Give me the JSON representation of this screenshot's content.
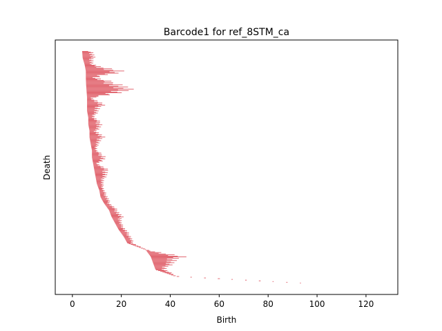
{
  "chart_data": {
    "type": "barcode",
    "title": "Barcode1 for ref_8STM_ca",
    "xlabel": "Birth",
    "ylabel": "Death",
    "xlim": [
      -7,
      133
    ],
    "x_ticks": [
      0,
      20,
      40,
      60,
      80,
      100,
      120
    ],
    "y_ticks": [],
    "bar_color": "#e0606a",
    "bar_count": 320,
    "bars_sampled": [
      [
        4.0,
        8.5
      ],
      [
        4.2,
        9.0
      ],
      [
        5.0,
        8.2
      ],
      [
        5.5,
        21.0
      ],
      [
        5.6,
        20.5
      ],
      [
        5.8,
        24.5
      ],
      [
        5.5,
        9.5
      ],
      [
        6.0,
        8.0
      ],
      [
        6.5,
        9.0
      ],
      [
        6.0,
        13.0
      ],
      [
        6.5,
        12.5
      ],
      [
        7.0,
        10.0
      ],
      [
        6.0,
        10.5
      ],
      [
        7.0,
        13.0
      ],
      [
        7.5,
        10.5
      ],
      [
        8.0,
        10.0
      ],
      [
        8.0,
        14.0
      ],
      [
        8.5,
        10.5
      ],
      [
        9.0,
        15.0
      ],
      [
        9.5,
        13.5
      ],
      [
        10.0,
        12.5
      ],
      [
        11.0,
        13.0
      ],
      [
        11.5,
        14.5
      ],
      [
        13.0,
        15.5
      ],
      [
        15.0,
        18.5
      ],
      [
        16.0,
        20.5
      ],
      [
        17.5,
        20.0
      ],
      [
        19.0,
        22.0
      ],
      [
        21.0,
        24.0
      ],
      [
        22.5,
        25.0
      ],
      [
        30.0,
        30.5
      ],
      [
        32.0,
        45.5
      ],
      [
        33.0,
        41.0
      ],
      [
        34.0,
        38.0
      ],
      [
        42.0,
        43.0
      ],
      [
        93.0,
        93.5
      ]
    ]
  }
}
